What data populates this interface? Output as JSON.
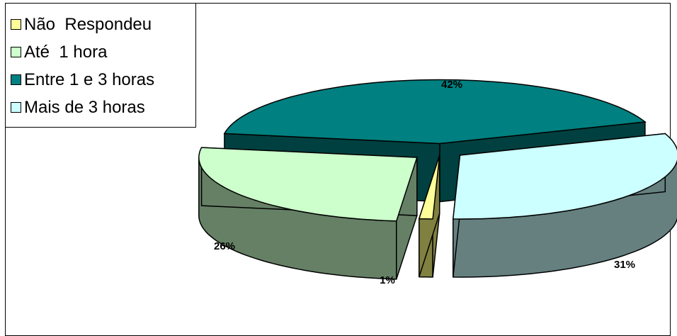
{
  "chart_data": {
    "type": "pie",
    "style": "3d-exploded",
    "categories": [
      "Não  Respondeu",
      "Até  1 hora",
      "Entre 1 e 3 horas",
      "Mais de 3 horas"
    ],
    "values": [
      1,
      26,
      42,
      31
    ],
    "data_labels": [
      "1%",
      "26%",
      "42%",
      "31%"
    ],
    "colors": {
      "nao_respondeu": {
        "top": "#FFFF99",
        "side": "#808040"
      },
      "ate_1_hora": {
        "top": "#CCFFCC",
        "side": "#668066"
      },
      "entre_1_e_3": {
        "top": "#008080",
        "side": "#004040"
      },
      "mais_de_3": {
        "top": "#CCFFFF",
        "side": "#668080"
      }
    },
    "legend_position": "top-left"
  },
  "legend": {
    "items": [
      {
        "label": "Não  Respondeu",
        "color": "#FFFF99"
      },
      {
        "label": "Até  1 hora",
        "color": "#CCFFCC"
      },
      {
        "label": "Entre 1 e 3 horas",
        "color": "#008080"
      },
      {
        "label": "Mais de 3 horas",
        "color": "#CCFFFF"
      }
    ]
  }
}
